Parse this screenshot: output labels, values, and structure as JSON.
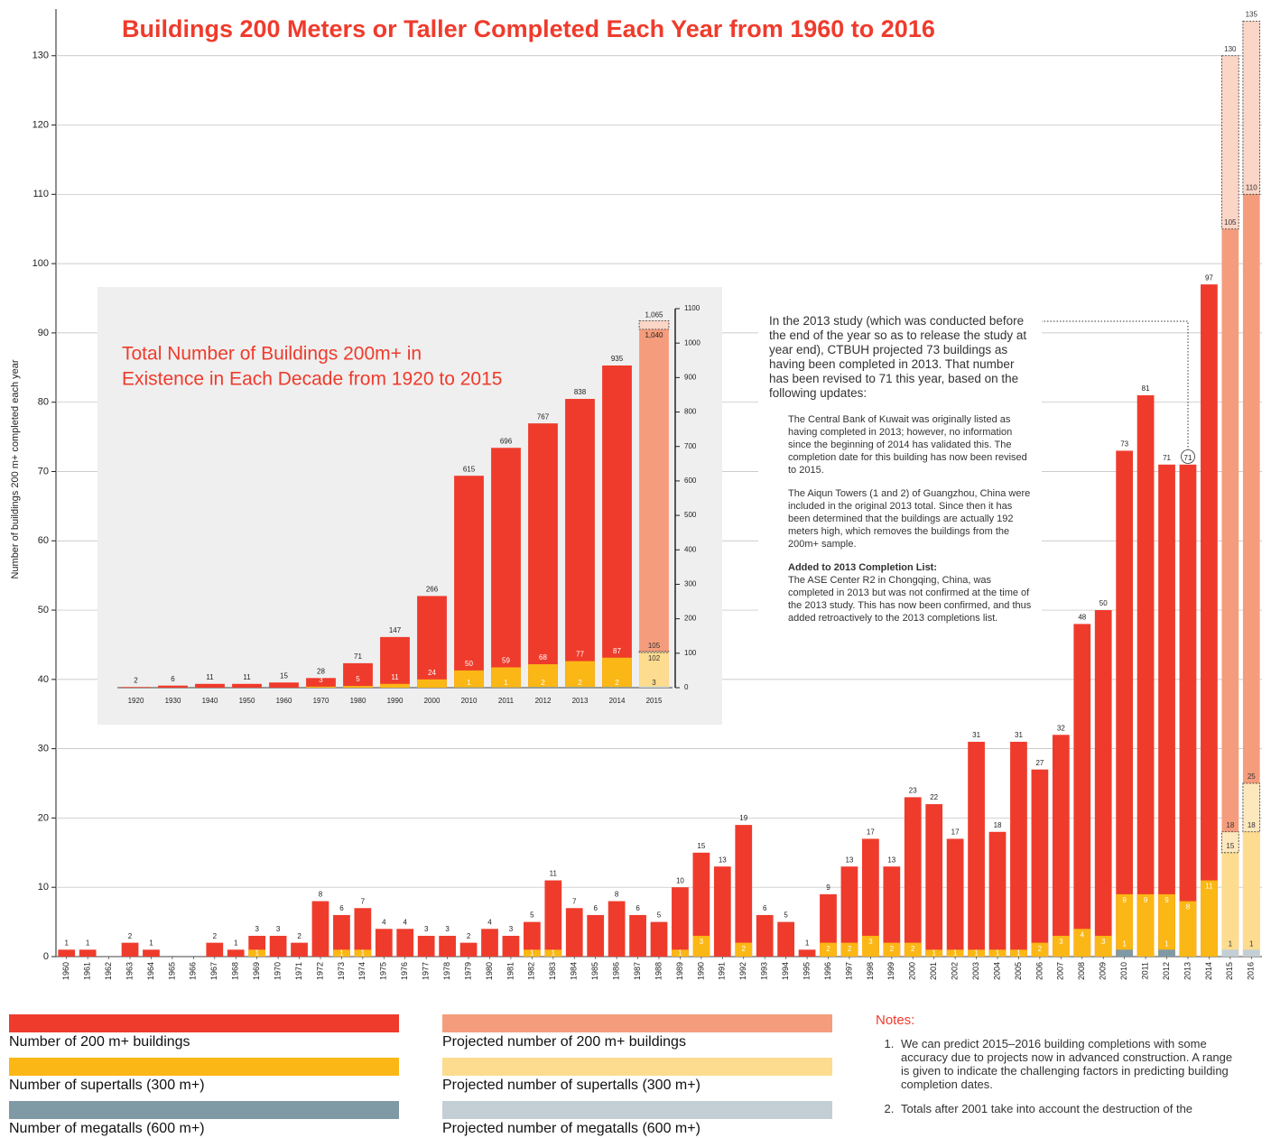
{
  "chart_data": [
    {
      "type": "bar",
      "title": "Buildings 200 Meters or Taller Completed Each Year from 1960 to 2016",
      "y_label": "Number of buildings 200 m+ completed each year",
      "categories": [
        "1960",
        "1961",
        "1962",
        "1963",
        "1964",
        "1965",
        "1966",
        "1967",
        "1968",
        "1969",
        "1970",
        "1971",
        "1972",
        "1973",
        "1974",
        "1975",
        "1976",
        "1977",
        "1978",
        "1979",
        "1980",
        "1981",
        "1982",
        "1983",
        "1984",
        "1985",
        "1986",
        "1987",
        "1988",
        "1989",
        "1990",
        "1991",
        "1992",
        "1993",
        "1994",
        "1995",
        "1996",
        "1997",
        "1998",
        "1999",
        "2000",
        "2001",
        "2002",
        "2003",
        "2004",
        "2005",
        "2006",
        "2007",
        "2008",
        "2009",
        "2010",
        "2011",
        "2012",
        "2013",
        "2014",
        "2015",
        "2016"
      ],
      "series": [
        {
          "name": "Number of 200 m+ buildings",
          "color": "#ef3b2c",
          "values": [
            1,
            1,
            null,
            2,
            1,
            null,
            null,
            2,
            1,
            3,
            3,
            2,
            8,
            6,
            7,
            4,
            4,
            3,
            3,
            2,
            4,
            3,
            5,
            11,
            7,
            6,
            8,
            6,
            5,
            10,
            15,
            13,
            19,
            6,
            5,
            1,
            9,
            13,
            17,
            13,
            23,
            22,
            17,
            31,
            18,
            31,
            27,
            32,
            48,
            50,
            73,
            81,
            71,
            71,
            97,
            null,
            null
          ]
        },
        {
          "name": "Number of supertalls (300 m+)",
          "color": "#fbb715",
          "values": [
            null,
            null,
            null,
            null,
            null,
            null,
            null,
            null,
            null,
            1,
            null,
            null,
            null,
            1,
            1,
            null,
            null,
            null,
            null,
            null,
            null,
            null,
            1,
            1,
            null,
            null,
            null,
            null,
            null,
            1,
            3,
            null,
            2,
            null,
            null,
            null,
            2,
            2,
            3,
            2,
            2,
            1,
            1,
            1,
            1,
            1,
            2,
            3,
            4,
            3,
            9,
            9,
            9,
            8,
            11,
            null,
            null
          ]
        },
        {
          "name": "Number of megatalls (600 m+)",
          "color": "#7f99a5",
          "values": [
            null,
            null,
            null,
            null,
            null,
            null,
            null,
            null,
            null,
            null,
            null,
            null,
            null,
            null,
            null,
            null,
            null,
            null,
            null,
            null,
            null,
            null,
            null,
            null,
            null,
            null,
            null,
            null,
            null,
            null,
            null,
            null,
            null,
            null,
            null,
            null,
            null,
            null,
            null,
            null,
            null,
            null,
            null,
            null,
            null,
            null,
            null,
            null,
            null,
            null,
            1,
            null,
            1,
            null,
            null,
            null,
            null
          ]
        },
        {
          "name": "Projected number of 200 m+ buildings",
          "color": "#f59c7c",
          "high_color": "#fbd5c6",
          "values": [
            null,
            null,
            null,
            null,
            null,
            null,
            null,
            null,
            null,
            null,
            null,
            null,
            null,
            null,
            null,
            null,
            null,
            null,
            null,
            null,
            null,
            null,
            null,
            null,
            null,
            null,
            null,
            null,
            null,
            null,
            null,
            null,
            null,
            null,
            null,
            null,
            null,
            null,
            null,
            null,
            null,
            null,
            null,
            null,
            null,
            null,
            null,
            null,
            null,
            null,
            null,
            null,
            null,
            null,
            null,
            105,
            110
          ],
          "high": [
            null,
            null,
            null,
            null,
            null,
            null,
            null,
            null,
            null,
            null,
            null,
            null,
            null,
            null,
            null,
            null,
            null,
            null,
            null,
            null,
            null,
            null,
            null,
            null,
            null,
            null,
            null,
            null,
            null,
            null,
            null,
            null,
            null,
            null,
            null,
            null,
            null,
            null,
            null,
            null,
            null,
            null,
            null,
            null,
            null,
            null,
            null,
            null,
            null,
            null,
            null,
            null,
            null,
            null,
            null,
            130,
            135
          ]
        },
        {
          "name": "Projected number of supertalls (300 m+)",
          "color": "#fddc8f",
          "high_color": "#fde8bd",
          "values": [
            null,
            null,
            null,
            null,
            null,
            null,
            null,
            null,
            null,
            null,
            null,
            null,
            null,
            null,
            null,
            null,
            null,
            null,
            null,
            null,
            null,
            null,
            null,
            null,
            null,
            null,
            null,
            null,
            null,
            null,
            null,
            null,
            null,
            null,
            null,
            null,
            null,
            null,
            null,
            null,
            null,
            null,
            null,
            null,
            null,
            null,
            null,
            null,
            null,
            null,
            null,
            null,
            null,
            null,
            null,
            15,
            18
          ],
          "high": [
            null,
            null,
            null,
            null,
            null,
            null,
            null,
            null,
            null,
            null,
            null,
            null,
            null,
            null,
            null,
            null,
            null,
            null,
            null,
            null,
            null,
            null,
            null,
            null,
            null,
            null,
            null,
            null,
            null,
            null,
            null,
            null,
            null,
            null,
            null,
            null,
            null,
            null,
            null,
            null,
            null,
            null,
            null,
            null,
            null,
            null,
            null,
            null,
            null,
            null,
            null,
            null,
            null,
            null,
            null,
            18,
            25
          ]
        },
        {
          "name": "Projected number of megatalls (600 m+)",
          "color": "#c3cfd5",
          "values": [
            null,
            null,
            null,
            null,
            null,
            null,
            null,
            null,
            null,
            null,
            null,
            null,
            null,
            null,
            null,
            null,
            null,
            null,
            null,
            null,
            null,
            null,
            null,
            null,
            null,
            null,
            null,
            null,
            null,
            null,
            null,
            null,
            null,
            null,
            null,
            null,
            null,
            null,
            null,
            null,
            null,
            null,
            null,
            null,
            null,
            null,
            null,
            null,
            null,
            null,
            null,
            null,
            null,
            null,
            null,
            1,
            1
          ]
        }
      ],
      "ylim": [
        0,
        137
      ],
      "yticks": [
        0,
        10,
        20,
        30,
        40,
        50,
        60,
        70,
        80,
        90,
        100,
        110,
        120,
        130
      ],
      "grid": true,
      "y_axis_position": "left",
      "annotation": {
        "intro": "In the 2013 study (which was conducted before the end of the year so as to release the study at year end), CTBUH projected 73 buildings as having been completed in 2013. That number has been revised to 71 this year, based on the following updates:",
        "items": [
          "The Central Bank of Kuwait was originally listed as having completed in 2013; however, no information since the beginning of 2014 has validated this. The completion date for this building has now been revised to 2015.",
          "The Aiqun Towers (1 and 2) of Guangzhou, China were included in the original 2013 total. Since then it has been determined that the buildings are actually 192 meters high, which removes the buildings from the 200m+ sample."
        ],
        "added_heading": "Added to 2013 Completion List:",
        "added_text": "The ASE Center R2 in Chongqing, China, was completed in 2013 but was not confirmed at the time of the 2013 study. This has now been confirmed, and thus added retroactively to the 2013 completions list."
      },
      "notes": {
        "heading": "Notes:",
        "items": [
          "We can predict 2015–2016 building completions with some accuracy due to projects now in advanced construction.  A range is given to indicate the challenging factors in predicting building completion dates.",
          "Totals after 2001 take into account the destruction of the"
        ]
      }
    },
    {
      "type": "bar",
      "title": [
        "Total Number of Buildings 200m+ in",
        "Existence in Each Decade from 1920 to 2015"
      ],
      "categories": [
        "1920",
        "1930",
        "1940",
        "1950",
        "1960",
        "1970",
        "1980",
        "1990",
        "2000",
        "2010",
        "2011",
        "2012",
        "2013",
        "2014",
        "2015"
      ],
      "series": [
        {
          "color": "#ef3b2c",
          "values": [
            2,
            6,
            11,
            11,
            15,
            28,
            71,
            147,
            266,
            615,
            696,
            767,
            838,
            935,
            null
          ]
        },
        {
          "color": "#fbb715",
          "values": [
            null,
            null,
            null,
            null,
            null,
            3,
            5,
            11,
            24,
            50,
            59,
            68,
            77,
            87,
            null
          ]
        },
        {
          "color": "#7f99a5",
          "values": [
            null,
            null,
            null,
            null,
            null,
            null,
            null,
            null,
            null,
            1,
            1,
            2,
            2,
            2,
            null
          ]
        },
        {
          "color": "#f59c7c",
          "high_color": "#fbd5c6",
          "values": [
            null,
            null,
            null,
            null,
            null,
            null,
            null,
            null,
            null,
            null,
            null,
            null,
            null,
            null,
            1040
          ],
          "value_labels": [
            null,
            null,
            null,
            null,
            null,
            null,
            null,
            null,
            null,
            null,
            null,
            null,
            null,
            null,
            "1,040"
          ],
          "high": [
            null,
            null,
            null,
            null,
            null,
            null,
            null,
            null,
            null,
            null,
            null,
            null,
            null,
            null,
            1065
          ],
          "high_labels": [
            null,
            null,
            null,
            null,
            null,
            null,
            null,
            null,
            null,
            null,
            null,
            null,
            null,
            null,
            "1,065"
          ]
        },
        {
          "color": "#fddc8f",
          "high_color": "#fde8bd",
          "values": [
            null,
            null,
            null,
            null,
            null,
            null,
            null,
            null,
            null,
            null,
            null,
            null,
            null,
            null,
            102
          ],
          "high": [
            null,
            null,
            null,
            null,
            null,
            null,
            null,
            null,
            null,
            null,
            null,
            null,
            null,
            null,
            105
          ]
        },
        {
          "color": "#c3cfd5",
          "values": [
            null,
            null,
            null,
            null,
            null,
            null,
            null,
            null,
            null,
            null,
            null,
            null,
            null,
            null,
            3
          ]
        }
      ],
      "ylim": [
        0,
        1100
      ],
      "yticks": [
        0,
        100,
        200,
        300,
        400,
        500,
        600,
        700,
        800,
        900,
        1000,
        1100
      ],
      "grid": false,
      "y_axis_position": "right"
    }
  ]
}
